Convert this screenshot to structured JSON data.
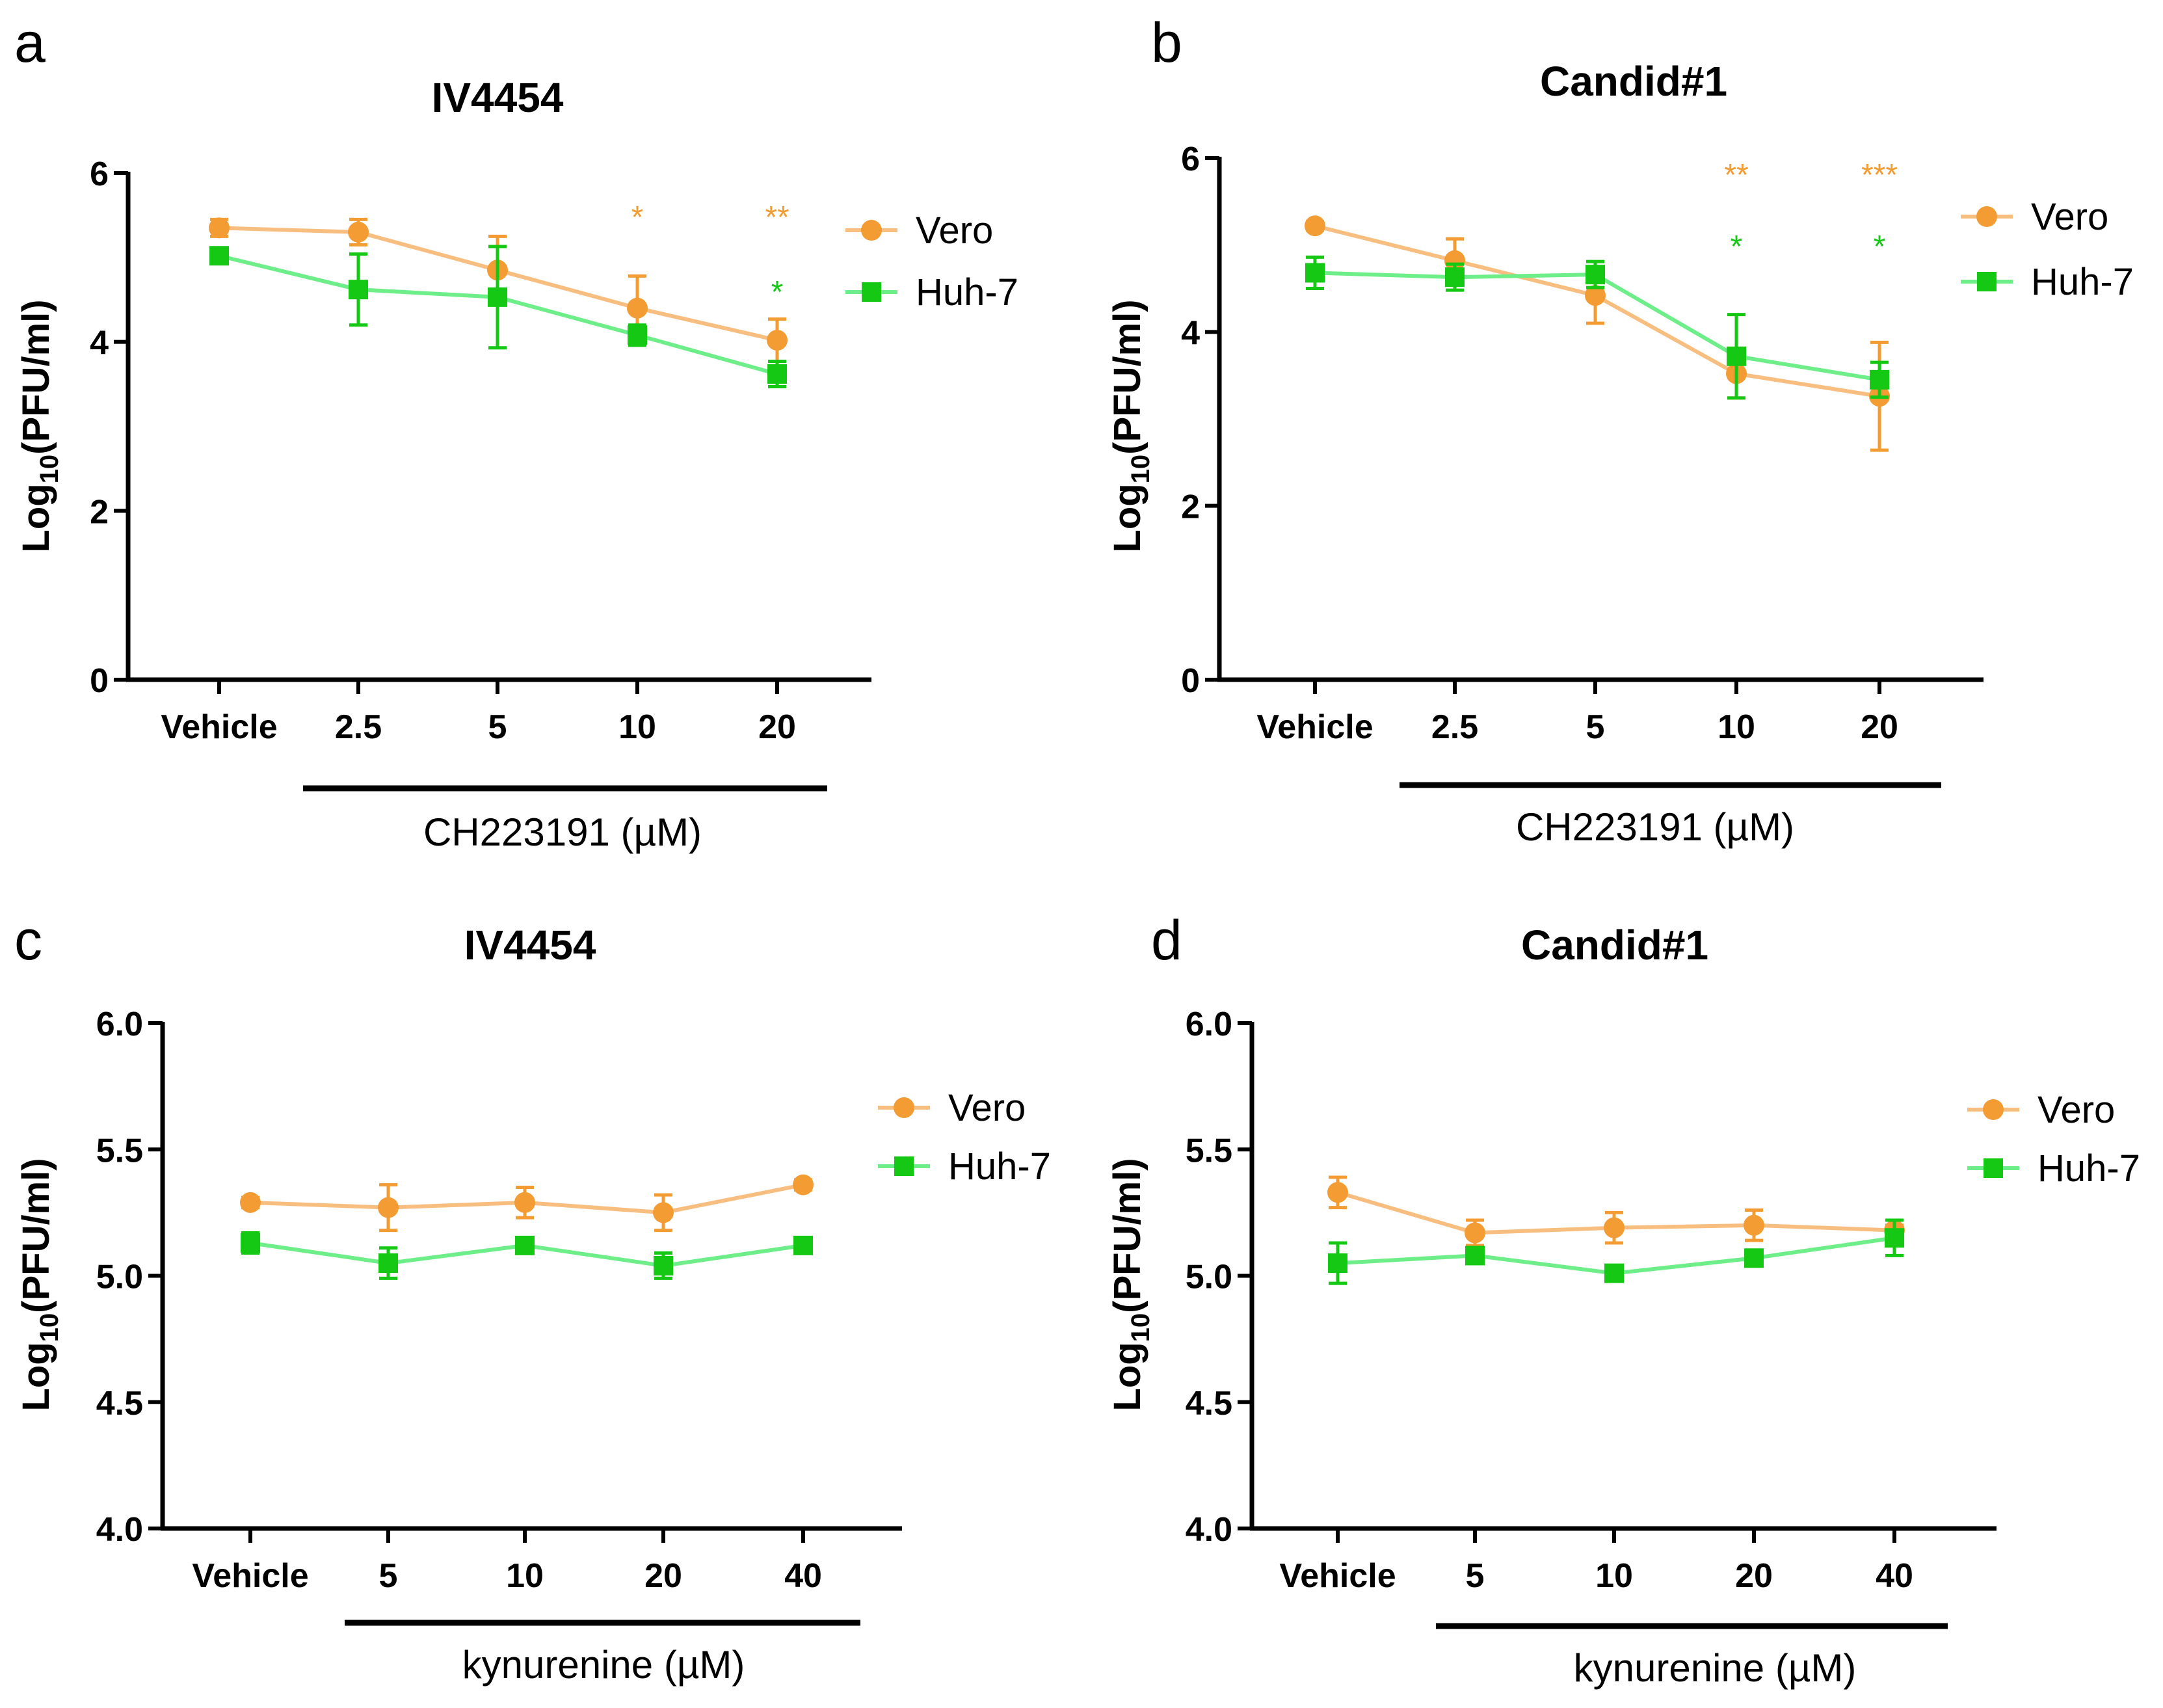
{
  "colors": {
    "vero": "#F39C34",
    "vero_line": "#F7BE80",
    "huh7": "#14C814",
    "huh7_line": "#6EEE88",
    "axis": "#000000"
  },
  "chart_data": [
    {
      "panel": "a",
      "title": "IV4454",
      "type": "line",
      "ylabel_main": "Log",
      "ylabel_sub": "10",
      "ylabel_tail": "(PFU/ml)",
      "ylim": [
        0,
        6
      ],
      "yticks": [
        "0",
        "2",
        "4",
        "6"
      ],
      "categories": [
        "Vehicle",
        "2.5",
        "5",
        "10",
        "20"
      ],
      "treatment_label": "CH223191 (µM)",
      "legend": [
        "Vero",
        "Huh-7"
      ],
      "series": [
        {
          "name": "Vero",
          "values": [
            5.35,
            5.3,
            4.85,
            4.4,
            4.02
          ],
          "errors": [
            0.1,
            0.15,
            0.4,
            0.38,
            0.25
          ],
          "marker": "circle",
          "stars": [
            {
              "index": 3,
              "text": "*"
            },
            {
              "index": 4,
              "text": "**"
            }
          ]
        },
        {
          "name": "Huh-7",
          "values": [
            5.02,
            4.62,
            4.53,
            4.08,
            3.62
          ],
          "errors": [
            0.05,
            0.42,
            0.6,
            0.12,
            0.15
          ],
          "marker": "square",
          "stars": [
            {
              "index": 4,
              "text": "*"
            }
          ]
        }
      ]
    },
    {
      "panel": "b",
      "title": "Candid#1",
      "type": "line",
      "ylabel_main": "Log",
      "ylabel_sub": "10",
      "ylabel_tail": "(PFU/ml)",
      "ylim": [
        0,
        6
      ],
      "yticks": [
        "0",
        "2",
        "4",
        "6"
      ],
      "categories": [
        "Vehicle",
        "2.5",
        "5",
        "10",
        "20"
      ],
      "treatment_label": "CH223191 (µM)",
      "legend": [
        "Vero",
        "Huh-7"
      ],
      "series": [
        {
          "name": "Vero",
          "values": [
            5.22,
            4.82,
            4.42,
            3.52,
            3.26
          ],
          "errors": [
            0.05,
            0.25,
            0.32,
            0.28,
            0.62
          ],
          "marker": "circle",
          "stars": [
            {
              "index": 3,
              "text": "**"
            },
            {
              "index": 4,
              "text": "***"
            }
          ]
        },
        {
          "name": "Huh-7",
          "values": [
            4.68,
            4.63,
            4.66,
            3.72,
            3.45
          ],
          "errors": [
            0.18,
            0.15,
            0.15,
            0.48,
            0.2
          ],
          "marker": "square",
          "stars": [
            {
              "index": 3,
              "text": "*"
            },
            {
              "index": 4,
              "text": "*"
            }
          ]
        }
      ]
    },
    {
      "panel": "c",
      "title": "IV4454",
      "type": "line",
      "ylabel_main": "Log",
      "ylabel_sub": "10",
      "ylabel_tail": "(PFU/ml)",
      "ylim": [
        4.0,
        6.0
      ],
      "yticks": [
        "4.0",
        "4.5",
        "5.0",
        "5.5",
        "6.0"
      ],
      "categories": [
        "Vehicle",
        "5",
        "10",
        "20",
        "40"
      ],
      "treatment_label": "kynurenine (µM)",
      "legend": [
        "Vero",
        "Huh-7"
      ],
      "series": [
        {
          "name": "Vero",
          "values": [
            5.29,
            5.27,
            5.29,
            5.25,
            5.36
          ],
          "errors": [
            0.02,
            0.09,
            0.06,
            0.07,
            0.02
          ],
          "marker": "circle",
          "stars": []
        },
        {
          "name": "Huh-7",
          "values": [
            5.13,
            5.05,
            5.12,
            5.04,
            5.12
          ],
          "errors": [
            0.04,
            0.06,
            0.02,
            0.05,
            0.02
          ],
          "marker": "square",
          "stars": []
        }
      ]
    },
    {
      "panel": "d",
      "title": "Candid#1",
      "type": "line",
      "ylabel_main": "Log",
      "ylabel_sub": "10",
      "ylabel_tail": "(PFU/ml)",
      "ylim": [
        4.0,
        6.0
      ],
      "yticks": [
        "4.0",
        "4.5",
        "5.0",
        "5.5",
        "6.0"
      ],
      "categories": [
        "Vehicle",
        "5",
        "10",
        "20",
        "40"
      ],
      "treatment_label": "kynurenine (µM)",
      "legend": [
        "Vero",
        "Huh-7"
      ],
      "series": [
        {
          "name": "Vero",
          "values": [
            5.33,
            5.17,
            5.19,
            5.2,
            5.18
          ],
          "errors": [
            0.06,
            0.05,
            0.06,
            0.06,
            0.02
          ],
          "marker": "circle",
          "stars": []
        },
        {
          "name": "Huh-7",
          "values": [
            5.05,
            5.08,
            5.01,
            5.07,
            5.15
          ],
          "errors": [
            0.08,
            0.02,
            0.02,
            0.02,
            0.07
          ],
          "marker": "square",
          "stars": []
        }
      ]
    }
  ]
}
